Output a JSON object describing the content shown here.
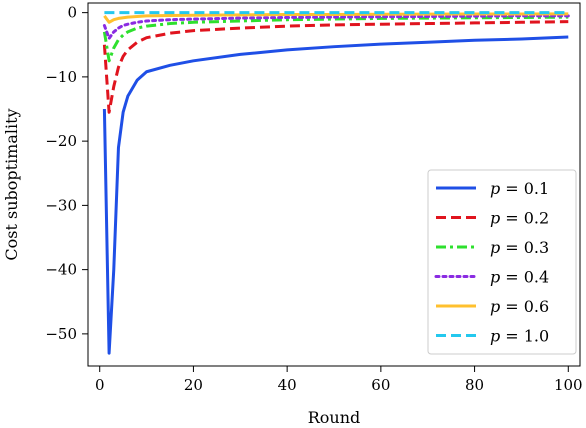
{
  "chart_data": {
    "type": "line",
    "title": "",
    "xlabel": "Round",
    "ylabel": "Cost suboptimality",
    "xlim": [
      -2.5,
      102.5
    ],
    "ylim": [
      -55,
      1.5
    ],
    "xticks": [
      0,
      20,
      40,
      60,
      80,
      100
    ],
    "xtick_labels": [
      "0",
      "20",
      "40",
      "60",
      "80",
      "100"
    ],
    "yticks": [
      0,
      -10,
      -20,
      -30,
      -40,
      -50
    ],
    "ytick_labels": [
      "0",
      "−10",
      "−20",
      "−30",
      "−40",
      "−50"
    ],
    "grid": false,
    "legend_position": "lower-right",
    "series": [
      {
        "name": "p = 0.1",
        "legend_var": "p",
        "legend_value": "= 0.1",
        "color": "#1f4fe6",
        "dash": "solid",
        "x": [
          1,
          2,
          3,
          4,
          5,
          6,
          8,
          10,
          15,
          20,
          30,
          40,
          50,
          60,
          70,
          80,
          90,
          100
        ],
        "y": [
          -15,
          -53,
          -40,
          -21,
          -15.5,
          -13,
          -10.5,
          -9.2,
          -8.2,
          -7.5,
          -6.5,
          -5.8,
          -5.3,
          -4.9,
          -4.6,
          -4.3,
          -4.1,
          -3.8
        ]
      },
      {
        "name": "p = 0.2",
        "legend_var": "p",
        "legend_value": "= 0.2",
        "color": "#e0141e",
        "dash": "dashed",
        "x": [
          1,
          2,
          3,
          4,
          5,
          6,
          8,
          10,
          15,
          20,
          30,
          40,
          50,
          60,
          70,
          80,
          90,
          100
        ],
        "y": [
          -5,
          -15.5,
          -11.5,
          -8.5,
          -6.8,
          -5.8,
          -4.6,
          -3.9,
          -3.2,
          -2.8,
          -2.4,
          -2.1,
          -1.9,
          -1.8,
          -1.7,
          -1.6,
          -1.5,
          -1.4
        ]
      },
      {
        "name": "p = 0.3",
        "legend_var": "p",
        "legend_value": "= 0.3",
        "color": "#2ee02e",
        "dash": "dashdot",
        "x": [
          1,
          2,
          3,
          4,
          5,
          6,
          8,
          10,
          15,
          20,
          30,
          40,
          50,
          60,
          70,
          80,
          90,
          100
        ],
        "y": [
          -3,
          -7.5,
          -5.5,
          -4.2,
          -3.5,
          -3.0,
          -2.4,
          -2.1,
          -1.7,
          -1.5,
          -1.3,
          -1.1,
          -1.0,
          -0.9,
          -0.85,
          -0.8,
          -0.75,
          -0.7
        ]
      },
      {
        "name": "p = 0.4",
        "legend_var": "p",
        "legend_value": "= 0.4",
        "color": "#8a2be2",
        "dash": "dotted",
        "x": [
          1,
          2,
          3,
          4,
          5,
          6,
          8,
          10,
          15,
          20,
          30,
          40,
          50,
          60,
          70,
          80,
          90,
          100
        ],
        "y": [
          -2,
          -4.0,
          -3.0,
          -2.4,
          -2.0,
          -1.8,
          -1.5,
          -1.3,
          -1.1,
          -1.0,
          -0.85,
          -0.75,
          -0.7,
          -0.65,
          -0.6,
          -0.55,
          -0.5,
          -0.5
        ]
      },
      {
        "name": "p = 0.6",
        "legend_var": "p",
        "legend_value": "= 0.6",
        "color": "#ffc02e",
        "dash": "solid",
        "x": [
          1,
          2,
          3,
          4,
          5,
          6,
          8,
          10,
          15,
          20,
          30,
          40,
          50,
          60,
          70,
          80,
          90,
          100
        ],
        "y": [
          -0.5,
          -1.5,
          -1.1,
          -0.9,
          -0.8,
          -0.7,
          -0.6,
          -0.5,
          -0.45,
          -0.4,
          -0.35,
          -0.3,
          -0.28,
          -0.26,
          -0.24,
          -0.22,
          -0.21,
          -0.2
        ]
      },
      {
        "name": "p = 1.0",
        "legend_var": "p",
        "legend_value": "= 1.0",
        "color": "#24c8ee",
        "dash": "dashed",
        "x": [
          1,
          2,
          3,
          5,
          10,
          20,
          40,
          60,
          80,
          100
        ],
        "y": [
          0,
          0,
          0,
          0,
          0,
          0,
          0,
          0,
          0,
          0
        ]
      }
    ]
  }
}
